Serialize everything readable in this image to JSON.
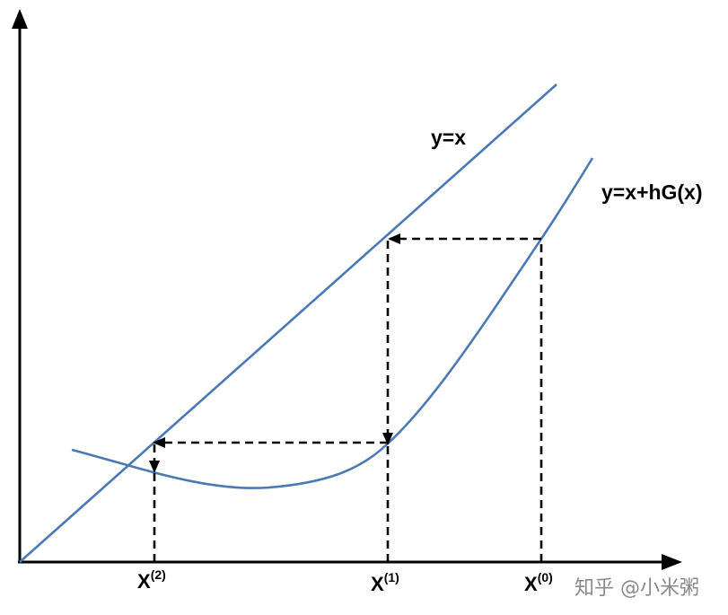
{
  "diagram": {
    "curves": {
      "identity_label": "y=x",
      "map_label": "y=x+hG(x)"
    },
    "iterates": [
      {
        "base": "X",
        "sup": "(2)"
      },
      {
        "base": "X",
        "sup": "(1)"
      },
      {
        "base": "X",
        "sup": "(0)"
      }
    ],
    "colors": {
      "curve": "#4a79b5",
      "axis": "#000000",
      "dashed": "#000000"
    }
  },
  "watermark": "知乎 @小米粥"
}
